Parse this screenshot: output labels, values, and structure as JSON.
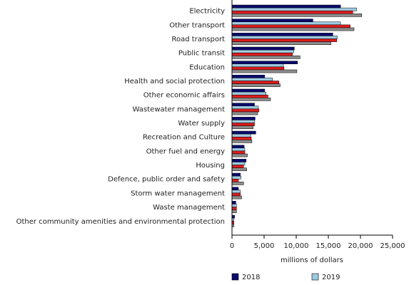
{
  "chart_data": {
    "type": "bar",
    "orientation": "horizontal",
    "categories": [
      "Electricity",
      "Other transport",
      "Road transport",
      "Public transit",
      "Education",
      "Health and social protection",
      "Other economic affairs",
      "Wastewater management",
      "Water supply",
      "Recreation and Culture",
      "Other fuel and energy",
      "Housing",
      "Defence, public order and safety",
      "Storm water management",
      "Waste management",
      "Other community amenities and environmental protection"
    ],
    "series": [
      {
        "name": "2018",
        "color": "#0a0a6e",
        "values": [
          16900,
          12600,
          15700,
          9700,
          10200,
          5100,
          5100,
          3500,
          3600,
          3700,
          1900,
          2200,
          1300,
          1000,
          600,
          400
        ]
      },
      {
        "name": "2019",
        "color": "#9ecae1",
        "values": [
          19400,
          16900,
          16400,
          9600,
          8000,
          6300,
          5300,
          4100,
          3500,
          2900,
          2000,
          2000,
          1400,
          1300,
          700,
          300
        ]
      },
      {
        "name": "",
        "color": "#dd1c1c",
        "values": [
          18800,
          18400,
          16300,
          9400,
          8100,
          7300,
          5600,
          4200,
          3500,
          3000,
          2000,
          1800,
          1000,
          1300,
          700,
          300
        ]
      },
      {
        "name": "",
        "color": "#8c8c8c",
        "values": [
          20200,
          19000,
          15400,
          10600,
          10100,
          7500,
          6000,
          4000,
          3300,
          3100,
          2400,
          2300,
          1800,
          1500,
          700,
          300
        ]
      }
    ],
    "xlabel": "millions of dollars",
    "xlim": [
      0,
      25000
    ],
    "xticks": [
      0,
      5000,
      10000,
      15000,
      20000,
      25000
    ],
    "xtick_labels": [
      "0",
      "5,000",
      "10,000",
      "15,000",
      "20,000",
      "25,000"
    ],
    "grid": false,
    "legend_position": "bottom"
  }
}
